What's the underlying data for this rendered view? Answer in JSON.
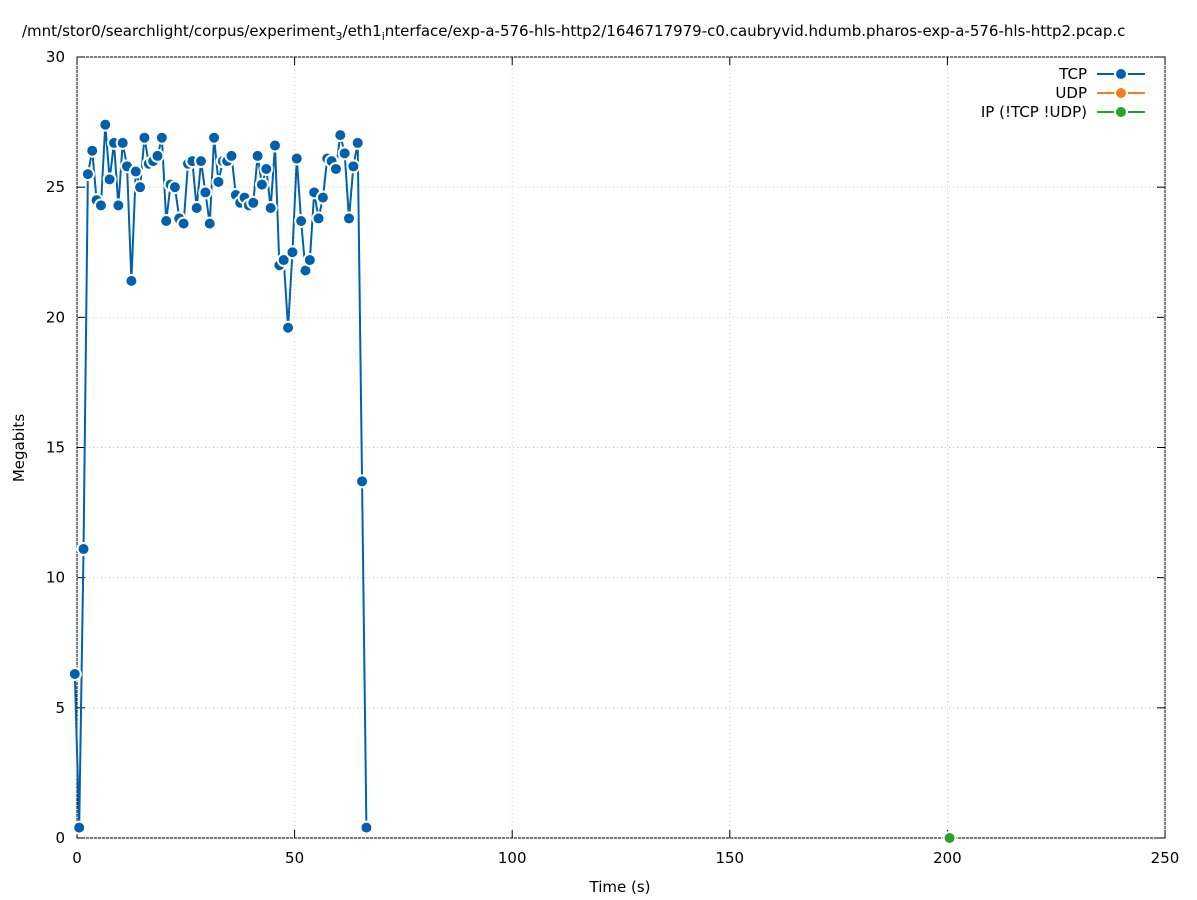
{
  "chart_data": {
    "type": "line",
    "title": [
      "/mnt/stor0/searchlight/corpus/experiment",
      "3",
      "/eth1",
      "i",
      "nterface/exp-a-576-hls-http2/1646717979-c0.caubryvid.hdumb.pharos-exp-a-576-hls-http2.pcap.c"
    ],
    "x_label": "Time (s)",
    "y_label": "Megabits",
    "xlim": [
      0,
      250
    ],
    "ylim": [
      0,
      30
    ],
    "xticks": [
      0,
      50,
      100,
      150,
      200,
      250
    ],
    "yticks": [
      0,
      5,
      10,
      15,
      20,
      25,
      30
    ],
    "grid": true,
    "legend": "top-right",
    "series": [
      {
        "name": "TCP",
        "color": "#0060ad",
        "x": [
          -0.5,
          0.5,
          1.5,
          2.5,
          3.5,
          4.5,
          5.5,
          6.5,
          7.5,
          8.5,
          9.5,
          10.5,
          11.5,
          12.5,
          13.5,
          14.5,
          15.5,
          16.5,
          17.5,
          18.5,
          19.5,
          20.5,
          21.5,
          22.5,
          23.5,
          24.5,
          25.5,
          26.5,
          27.5,
          28.5,
          29.5,
          30.5,
          31.5,
          32.5,
          33.5,
          34.5,
          35.5,
          36.5,
          37.5,
          38.5,
          39.5,
          40.5,
          41.5,
          42.5,
          43.5,
          44.5,
          45.5,
          46.5,
          47.5,
          48.5,
          49.5,
          50.5,
          51.5,
          52.5,
          53.5,
          54.5,
          55.5,
          56.5,
          57.5,
          58.5,
          59.5,
          60.5,
          61.5,
          62.5,
          63.5,
          64.5,
          65.5,
          66.5
        ],
        "values": [
          6.3,
          0.4,
          11.1,
          25.5,
          26.4,
          24.5,
          24.3,
          27.4,
          25.3,
          26.7,
          24.3,
          26.7,
          25.8,
          21.4,
          25.6,
          25.0,
          26.9,
          25.9,
          26.0,
          26.2,
          26.9,
          23.7,
          25.1,
          25.0,
          23.8,
          23.6,
          25.9,
          26.0,
          24.2,
          26.0,
          24.8,
          23.6,
          26.9,
          25.2,
          26.0,
          26.0,
          26.2,
          24.7,
          24.4,
          24.6,
          24.3,
          24.4,
          26.2,
          25.1,
          25.7,
          24.2,
          26.6,
          22.0,
          22.2,
          19.6,
          22.5,
          26.1,
          23.7,
          21.8,
          22.2,
          24.8,
          23.8,
          24.6,
          26.1,
          26.0,
          25.7,
          27.0,
          26.3,
          23.8,
          25.8,
          26.7,
          13.7,
          0.4
        ]
      },
      {
        "name": "UDP",
        "color": "#f08020",
        "x": [],
        "values": []
      },
      {
        "name": "IP (!TCP  !UDP)",
        "color": "#2ca02c",
        "x": [
          200.5
        ],
        "values": [
          0
        ]
      }
    ]
  }
}
